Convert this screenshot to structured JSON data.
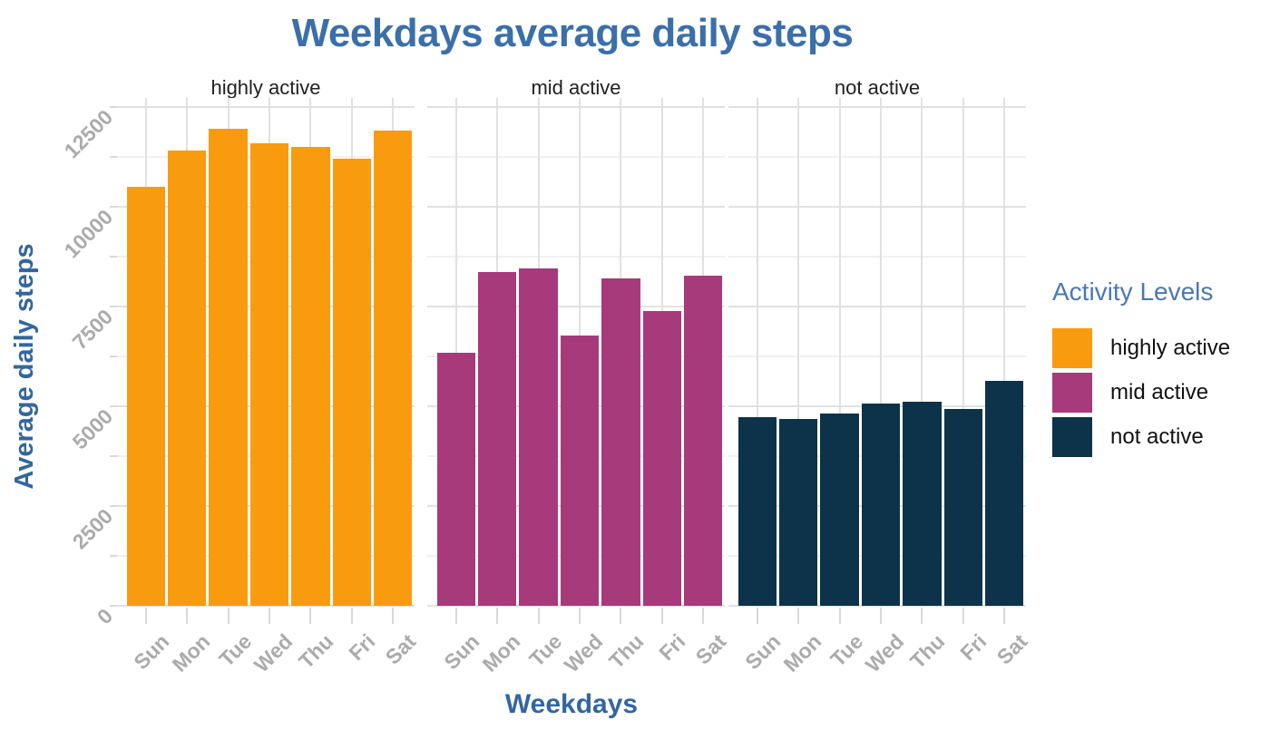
{
  "title": "Weekdays average daily steps",
  "axes": {
    "y_title": "Average daily steps",
    "x_title": "Weekdays",
    "y_tick_labels": [
      "0",
      "2500",
      "5000",
      "7500",
      "10000",
      "12500"
    ],
    "x_tick_labels": [
      "Sun",
      "Mon",
      "Tue",
      "Wed",
      "Thu",
      "Fri",
      "Sat"
    ]
  },
  "legend": {
    "title": "Activity Levels",
    "items": [
      {
        "label": "highly active",
        "color": "#F99B0F"
      },
      {
        "label": "mid active",
        "color": "#A73A7B"
      },
      {
        "label": "not active",
        "color": "#0C3349"
      }
    ]
  },
  "colors": {
    "title_text": "#3B6FA9",
    "axis_title_text": "#33669F",
    "legend_title_text": "#4A79B4",
    "tick_text": "#ABABAB",
    "facet_label_text": "#212121",
    "grid_major": "#E1E1E1",
    "grid_minor": "#F0F0F0",
    "tick_mark": "#D9D9D9",
    "background": "#FFFFFF"
  },
  "chart_data": {
    "type": "bar",
    "faceted": true,
    "facet_variable": "Activity Levels",
    "title": "Weekdays average daily steps",
    "xlabel": "Weekdays",
    "ylabel": "Average daily steps",
    "categories": [
      "Sun",
      "Mon",
      "Tue",
      "Wed",
      "Thu",
      "Fri",
      "Sat"
    ],
    "facets": [
      {
        "name": "highly active",
        "color": "#F99B0F",
        "values": [
          10500,
          11400,
          11950,
          11600,
          11500,
          11200,
          11900
        ]
      },
      {
        "name": "mid active",
        "color": "#A73A7B",
        "values": [
          6350,
          8370,
          8460,
          6770,
          8200,
          7380,
          8270
        ]
      },
      {
        "name": "not active",
        "color": "#0C3349",
        "values": [
          4730,
          4680,
          4810,
          5060,
          5110,
          4940,
          5640
        ]
      }
    ],
    "ylim": [
      0,
      12770
    ],
    "y_breaks": [
      0,
      2500,
      5000,
      7500,
      10000,
      12500
    ],
    "y_minor_breaks": [
      1250,
      3750,
      6250,
      8750,
      11250
    ],
    "grid": true,
    "legend_position": "right"
  }
}
